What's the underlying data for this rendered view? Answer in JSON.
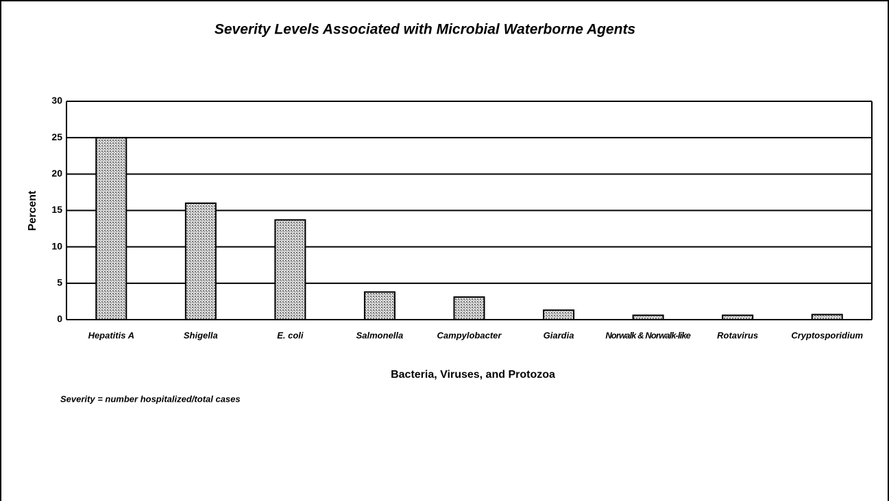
{
  "chart_data": {
    "type": "bar",
    "title": "Severity Levels Associated with Microbial Waterborne Agents",
    "x_label": "Bacteria, Viruses, and Protozoa",
    "y_label": "Percent",
    "note": "Severity = number hospitalized/total cases",
    "categories": [
      "Hepatitis A",
      "Shigella",
      "E. coli",
      "Salmonella",
      "Campylobacter",
      "Giardia",
      "Norwalk & Norwalk-like",
      "Rotavirus",
      "Cryptosporidium"
    ],
    "values": [
      25,
      16,
      13.7,
      3.8,
      3.1,
      1.3,
      0.6,
      0.6,
      0.7
    ],
    "color": "#a8a8a8",
    "ylim": [
      0,
      30
    ],
    "yticks": [
      0,
      5,
      10,
      15,
      20,
      25,
      30
    ],
    "grid": true
  }
}
